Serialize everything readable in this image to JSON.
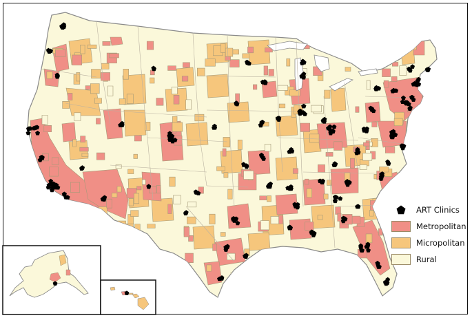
{
  "map": {
    "region": "contiguous United States with Alaska and Hawaii insets",
    "fill_colors": {
      "Metropolitan": "#f08f86",
      "Micropolitan": "#f6c67c",
      "Rural": "#fbf8da",
      "clinic_marker": "#000000",
      "border": "#a59a78"
    },
    "clinic_marker_shape": "pentagon"
  },
  "legend": {
    "items": [
      {
        "kind": "marker",
        "label": "ART Clinics"
      },
      {
        "kind": "swatch",
        "label": "Metropolitan",
        "color": "#f08f86"
      },
      {
        "kind": "swatch",
        "label": "Micropolitan",
        "color": "#f6c67c"
      },
      {
        "kind": "swatch",
        "label": "Rural",
        "color": "#fbf8da"
      }
    ]
  },
  "insets": {
    "alaska": "Alaska",
    "hawaii": "Hawaii"
  }
}
